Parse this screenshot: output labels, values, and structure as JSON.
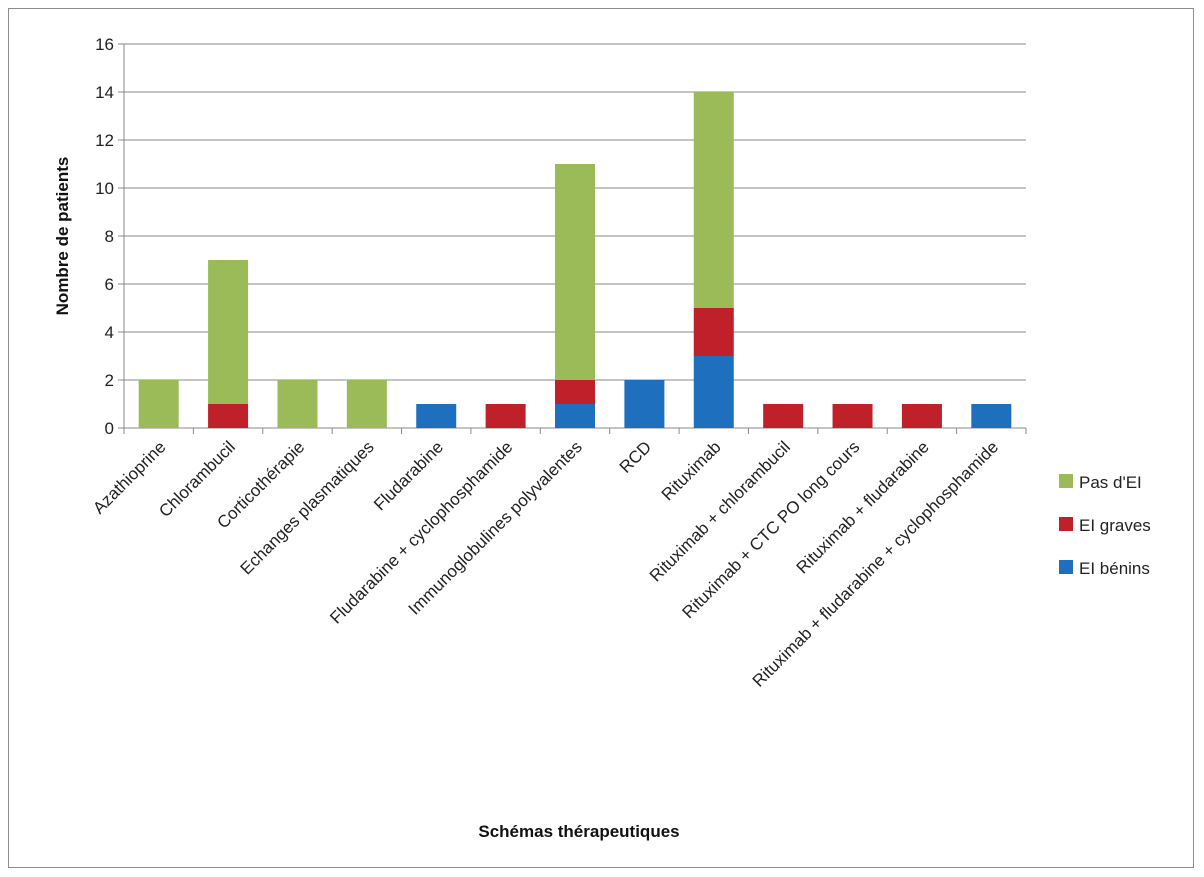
{
  "chart_data": {
    "type": "bar",
    "stacked": true,
    "categories": [
      "Azathioprine",
      "Chlorambucil",
      "Corticothérapie",
      "Echanges plasmatiques",
      "Fludarabine",
      "Fludarabine +  cyclophosphamide",
      "Immunoglobulines polyvalentes",
      "RCD",
      "Rituximab",
      "Rituximab + chlorambucil",
      "Rituximab + CTC PO long cours",
      "Rituximab + fludarabine",
      "Rituximab + fludarabine + cyclophosphamide"
    ],
    "series": [
      {
        "name": "EI bénins",
        "color": "#1f6fbf",
        "values": [
          0,
          0,
          0,
          0,
          1,
          0,
          1,
          2,
          3,
          0,
          0,
          0,
          1
        ]
      },
      {
        "name": "EI graves",
        "color": "#c0202a",
        "values": [
          0,
          1,
          0,
          0,
          0,
          1,
          1,
          0,
          2,
          1,
          1,
          1,
          0
        ]
      },
      {
        "name": "Pas d'EI",
        "color": "#9bbb59",
        "values": [
          2,
          6,
          2,
          2,
          0,
          0,
          9,
          0,
          9,
          0,
          0,
          0,
          0
        ]
      }
    ],
    "legend_order": [
      "Pas d'EI",
      "EI graves",
      "EI bénins"
    ],
    "legend_position": "right",
    "xlabel": "Schémas thérapeutiques",
    "ylabel": "Nombre de patients",
    "ylim": [
      0,
      16
    ],
    "yticks": [
      "0",
      "2",
      "4",
      "6",
      "8",
      "10",
      "12",
      "14",
      "16"
    ],
    "grid": true
  }
}
